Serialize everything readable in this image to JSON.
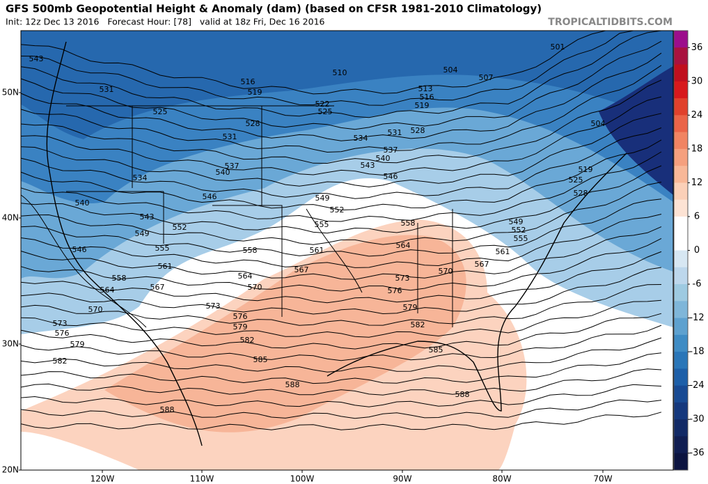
{
  "header": {
    "title": "GFS 500mb Geopotential Height & Anomaly (dam) (based on CFSR 1981-2010 Climatology)",
    "subtitle": "Init: 12z Dec 13 2016   Forecast Hour: [78]   valid at 18z Fri, Dec 16 2016",
    "watermark": "TROPICALTIDBITS.COM"
  },
  "map": {
    "lat_labels": [
      "50N",
      "40N",
      "30N",
      "20N"
    ],
    "lon_labels": [
      "120W",
      "110W",
      "100W",
      "90W",
      "80W",
      "70W"
    ],
    "contour_labels": [
      543,
      531,
      516,
      519,
      510,
      504,
      507,
      501,
      513,
      516,
      519,
      522,
      525,
      525,
      528,
      531,
      534,
      531,
      528,
      504,
      537,
      540,
      543,
      546,
      537,
      540,
      534,
      546,
      549,
      552,
      555,
      558,
      540,
      543,
      552,
      549,
      555,
      558,
      561,
      564,
      546,
      561,
      567,
      570,
      567,
      561,
      549,
      552,
      555,
      519,
      525,
      528,
      558,
      564,
      570,
      573,
      576,
      564,
      567,
      579,
      573,
      576,
      579,
      582,
      570,
      573,
      576,
      579,
      582,
      585,
      585,
      582,
      588,
      588,
      588
    ]
  },
  "colorbar": {
    "lim": [
      -39,
      39
    ],
    "ticks": [
      36,
      30,
      24,
      18,
      12,
      6,
      0,
      -6,
      -12,
      -18,
      -24,
      -30,
      -36
    ],
    "colors": [
      "#9c0e8c",
      "#a8123f",
      "#c0101e",
      "#d7191c",
      "#e0412c",
      "#ea6448",
      "#f08462",
      "#f5a07e",
      "#f8b898",
      "#fbd0b8",
      "#fde3d4",
      "#ffffff",
      "#ffffff",
      "#d7e7f3",
      "#bdd7ec",
      "#9ecae1",
      "#7fb6d9",
      "#5ea1cf",
      "#3f8cc4",
      "#2a76b8",
      "#1d5fa8",
      "#184a93",
      "#15387d",
      "#122a66",
      "#101e52",
      "#0c1440"
    ]
  }
}
